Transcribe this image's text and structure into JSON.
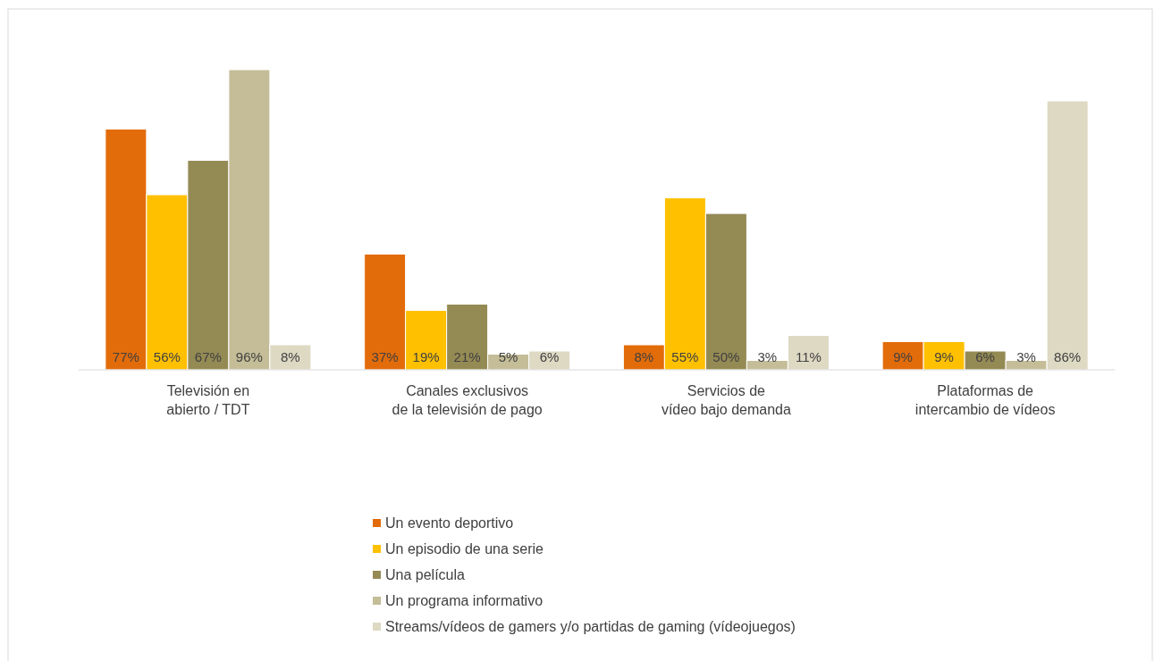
{
  "chart_data": {
    "type": "bar",
    "categories": [
      "Televisión en\nabierto / TDT",
      "Canales exclusivos\nde la televisión de pago",
      "Servicios de\nvídeo bajo demanda",
      "Plataformas de\nintercambio de vídeos"
    ],
    "series": [
      {
        "name": "Un evento deportivo",
        "color": "#e36c0a",
        "values": [
          77,
          37,
          8,
          9
        ],
        "value_labels": [
          "77%",
          "37%",
          "8%",
          "9%"
        ]
      },
      {
        "name": "Un episodio de una serie",
        "color": "#ffc000",
        "values": [
          56,
          19,
          55,
          9
        ],
        "value_labels": [
          "56%",
          "19%",
          "55%",
          "9%"
        ]
      },
      {
        "name": "Una película",
        "color": "#948a54",
        "values": [
          67,
          21,
          50,
          6
        ],
        "value_labels": [
          "67%",
          "21%",
          "50%",
          "6%"
        ]
      },
      {
        "name": "Un programa informativo",
        "color": "#c4bd97",
        "values": [
          96,
          5,
          3,
          3
        ],
        "value_labels": [
          "96%",
          "5%",
          "3%",
          "3%"
        ]
      },
      {
        "name": "Streams/vídeos de gamers y/o partidas de gaming (vídeojuegos)",
        "color": "#ddd9c3",
        "values": [
          8,
          6,
          11,
          86
        ],
        "value_labels": [
          "8%",
          "6%",
          "11%",
          "86%"
        ]
      }
    ],
    "tick_labels": "x",
    "legend": "bottom"
  }
}
